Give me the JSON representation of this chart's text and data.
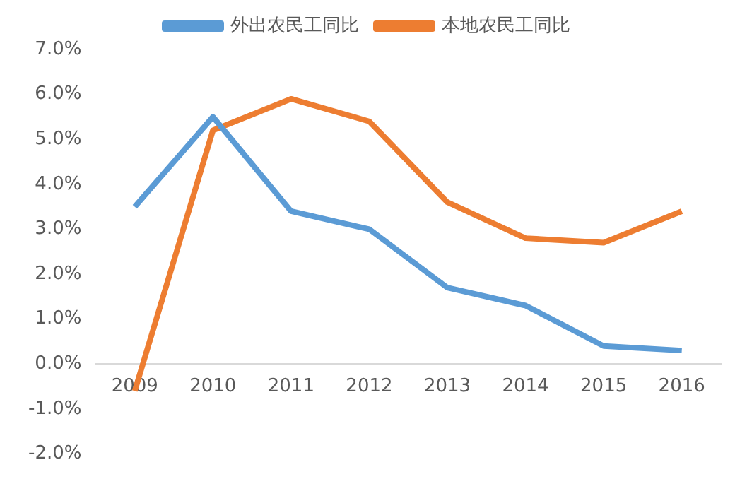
{
  "chart_data": {
    "type": "line",
    "categories": [
      "2009",
      "2010",
      "2011",
      "2012",
      "2013",
      "2014",
      "2015",
      "2016"
    ],
    "series": [
      {
        "name": "外出农民工同比",
        "color": "#5b9bd5",
        "values": [
          3.5,
          5.5,
          3.4,
          3.0,
          1.7,
          1.3,
          0.4,
          0.3
        ]
      },
      {
        "name": "本地农民工同比",
        "color": "#ed7d31",
        "values": [
          -0.6,
          5.2,
          5.9,
          5.4,
          3.6,
          2.8,
          2.7,
          3.4
        ]
      }
    ],
    "ylim": [
      -2,
      7
    ],
    "yticks": [
      {
        "value": -2,
        "label": "-2.0%"
      },
      {
        "value": -1,
        "label": "-1.0%"
      },
      {
        "value": 0,
        "label": "0.0%"
      },
      {
        "value": 1,
        "label": "1.0%"
      },
      {
        "value": 2,
        "label": "2.0%"
      },
      {
        "value": 3,
        "label": "3.0%"
      },
      {
        "value": 4,
        "label": "4.0%"
      },
      {
        "value": 5,
        "label": "5.0%"
      },
      {
        "value": 6,
        "label": "6.0%"
      },
      {
        "value": 7,
        "label": "7.0%"
      }
    ],
    "grid": false,
    "legend": "top",
    "marker": "none",
    "line_style": "solid"
  }
}
